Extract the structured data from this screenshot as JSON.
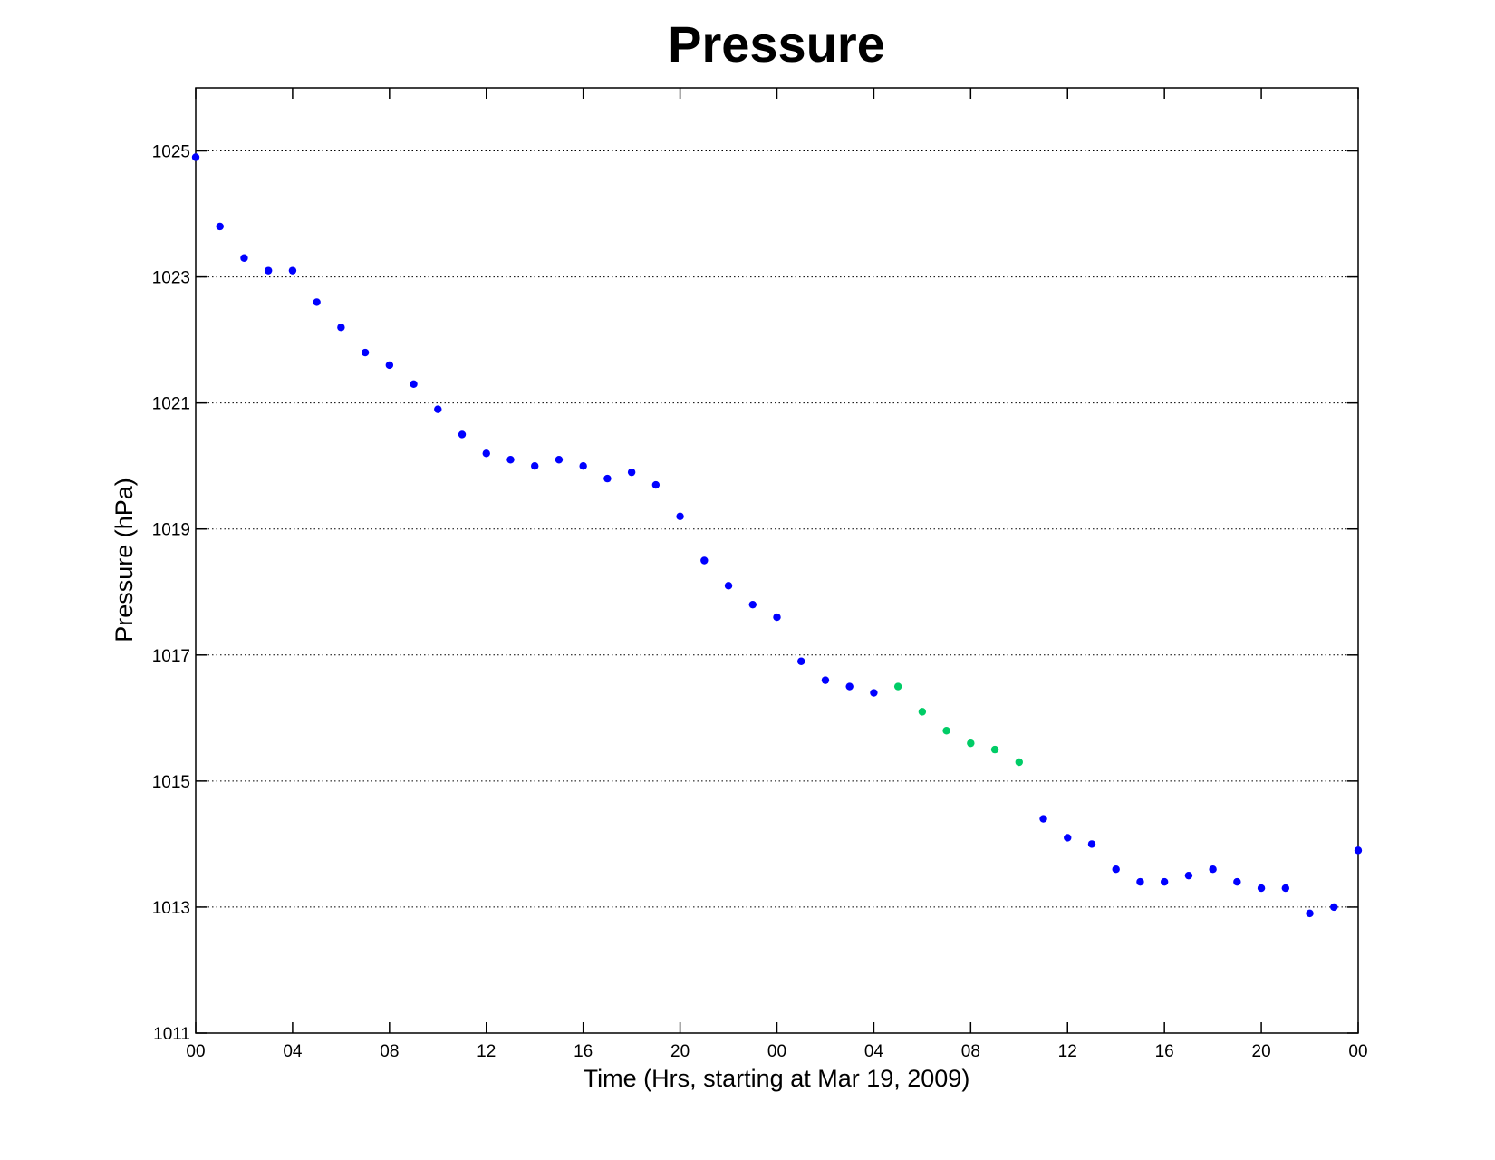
{
  "chart_data": {
    "type": "scatter",
    "title": "Pressure",
    "xlabel": "Time (Hrs, starting at Mar 19, 2009)",
    "ylabel": "Pressure (hPa)",
    "xlim": [
      0,
      48
    ],
    "ylim": [
      1011,
      1026
    ],
    "x_ticks": [
      0,
      4,
      8,
      12,
      16,
      20,
      24,
      28,
      32,
      36,
      40,
      44,
      48
    ],
    "x_tick_labels": [
      "00",
      "04",
      "08",
      "12",
      "16",
      "20",
      "00",
      "04",
      "08",
      "12",
      "16",
      "20",
      "00"
    ],
    "y_ticks": [
      1011,
      1013,
      1015,
      1017,
      1019,
      1021,
      1023,
      1025
    ],
    "y_tick_labels": [
      "1011",
      "1013",
      "1015",
      "1017",
      "1019",
      "1021",
      "1023",
      "1025"
    ],
    "y_grid": true,
    "x_grid": false,
    "series": [
      {
        "color": "#0000ff",
        "points": [
          [
            0,
            1024.9
          ],
          [
            1,
            1023.8
          ],
          [
            2,
            1023.3
          ],
          [
            3,
            1023.1
          ],
          [
            4,
            1023.1
          ],
          [
            5,
            1022.6
          ],
          [
            6,
            1022.2
          ],
          [
            7,
            1021.8
          ],
          [
            8,
            1021.6
          ],
          [
            9,
            1021.3
          ],
          [
            10,
            1020.9
          ],
          [
            11,
            1020.5
          ],
          [
            12,
            1020.2
          ],
          [
            13,
            1020.1
          ],
          [
            14,
            1020.0
          ],
          [
            15,
            1020.1
          ],
          [
            16,
            1020.0
          ],
          [
            17,
            1019.8
          ],
          [
            18,
            1019.9
          ],
          [
            19,
            1019.7
          ],
          [
            20,
            1019.2
          ],
          [
            21,
            1018.5
          ],
          [
            22,
            1018.1
          ],
          [
            23,
            1017.8
          ],
          [
            24,
            1017.6
          ],
          [
            25,
            1016.9
          ],
          [
            26,
            1016.6
          ],
          [
            27,
            1016.5
          ],
          [
            28,
            1016.4
          ],
          [
            35,
            1014.4
          ],
          [
            36,
            1014.1
          ],
          [
            37,
            1014.0
          ],
          [
            38,
            1013.6
          ],
          [
            39,
            1013.4
          ],
          [
            40,
            1013.4
          ],
          [
            41,
            1013.5
          ],
          [
            42,
            1013.6
          ],
          [
            43,
            1013.4
          ],
          [
            44,
            1013.3
          ],
          [
            45,
            1013.3
          ],
          [
            46,
            1012.9
          ],
          [
            47,
            1013.0
          ],
          [
            48,
            1013.9
          ]
        ]
      },
      {
        "color": "#00cc66",
        "points": [
          [
            29,
            1016.5
          ],
          [
            30,
            1016.1
          ],
          [
            31,
            1015.8
          ],
          [
            32,
            1015.6
          ],
          [
            33,
            1015.5
          ],
          [
            34,
            1015.3
          ]
        ]
      }
    ]
  }
}
